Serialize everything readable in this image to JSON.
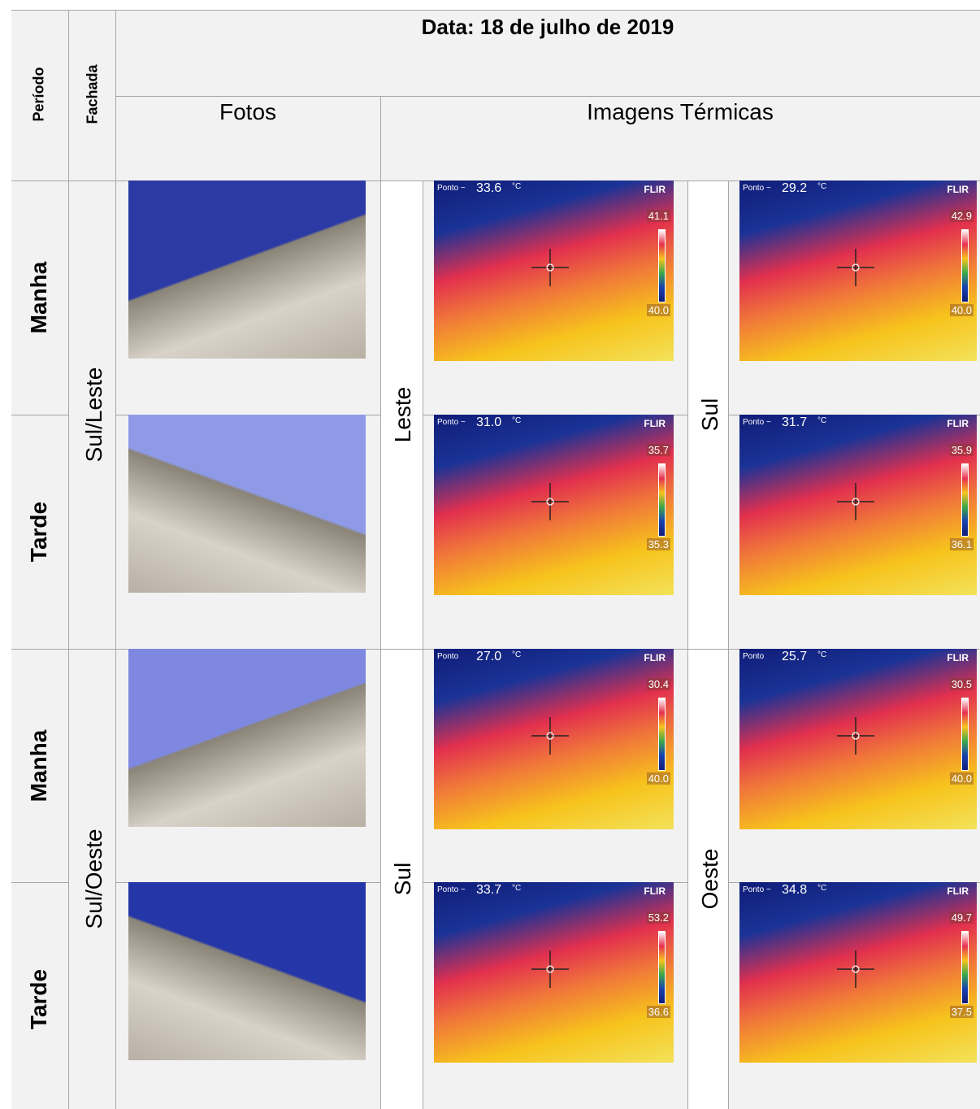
{
  "header": {
    "date": "Data: 18 de julho de 2019",
    "periodo": "Período",
    "fachada": "Fachada",
    "fotos": "Fotos",
    "termicas": "Imagens Térmicas"
  },
  "thermal_common": {
    "unit": "°C",
    "brand": "FLIR"
  },
  "groups": [
    {
      "fachada": "Sul/Leste",
      "left_face": "Leste",
      "right_face": "Sul",
      "rows": [
        {
          "period": "Manha",
          "thermal": [
            {
              "spot_label": "Ponto ~",
              "spot": "33.6",
              "max": "41.1",
              "min": "40.0"
            },
            {
              "spot_label": "Ponto ~",
              "spot": "29.2",
              "max": "42.9",
              "min": "40.0"
            }
          ]
        },
        {
          "period": "Tarde",
          "thermal": [
            {
              "spot_label": "Ponto ~",
              "spot": "31.0",
              "max": "35.7",
              "min": "35.3"
            },
            {
              "spot_label": "Ponto ~",
              "spot": "31.7",
              "max": "35.9",
              "min": "36.1"
            }
          ]
        }
      ]
    },
    {
      "fachada": "Sul/Oeste",
      "left_face": "Sul",
      "right_face": "Oeste",
      "rows": [
        {
          "period": "Manha",
          "thermal": [
            {
              "spot_label": "Ponto",
              "spot": "27.0",
              "max": "30.4",
              "min": "40.0"
            },
            {
              "spot_label": "Ponto",
              "spot": "25.7",
              "max": "30.5",
              "min": "40.0"
            }
          ]
        },
        {
          "period": "Tarde",
          "thermal": [
            {
              "spot_label": "Ponto ~",
              "spot": "33.7",
              "max": "53.2",
              "min": "36.6"
            },
            {
              "spot_label": "Ponto ~",
              "spot": "34.8",
              "max": "49.7",
              "min": "37.5"
            }
          ]
        }
      ]
    }
  ]
}
